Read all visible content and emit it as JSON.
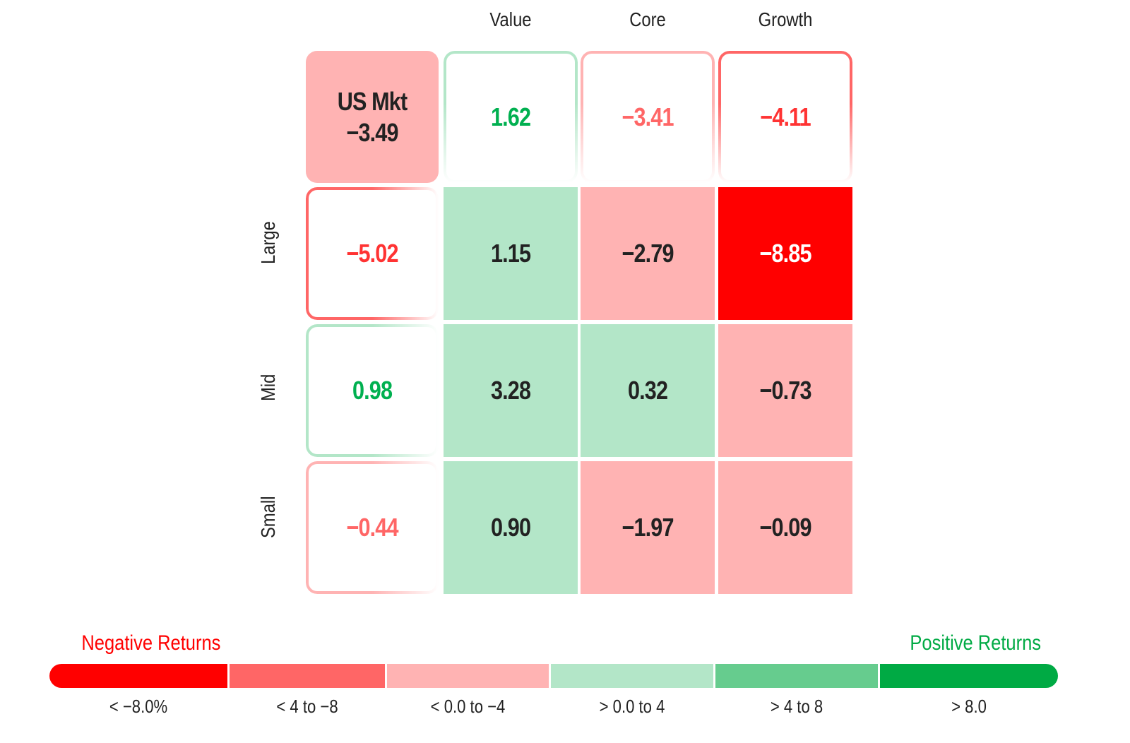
{
  "chart_data": {
    "type": "heatmap",
    "title": "",
    "columns": [
      "Value",
      "Core",
      "Growth"
    ],
    "rows": [
      "Large",
      "Mid",
      "Small"
    ],
    "market": {
      "label": "US Mkt",
      "value": -3.49
    },
    "column_totals": [
      1.62,
      -3.41,
      -4.11
    ],
    "row_totals": [
      -5.02,
      0.98,
      -0.44
    ],
    "values": [
      [
        1.15,
        -2.79,
        -8.85
      ],
      [
        3.28,
        0.32,
        -0.73
      ],
      [
        0.9,
        -1.97,
        -0.09
      ]
    ],
    "display": {
      "market": "−3.49",
      "column_totals": [
        "1.62",
        "−3.41",
        "−4.11"
      ],
      "row_totals": [
        "−5.02",
        "0.98",
        "−0.44"
      ],
      "values": [
        [
          "1.15",
          "−2.79",
          "−8.85"
        ],
        [
          "3.28",
          "0.32",
          "−0.73"
        ],
        [
          "0.90",
          "−1.97",
          "−0.09"
        ]
      ]
    },
    "legend": {
      "negative_label": "Negative Returns",
      "positive_label": "Positive Returns",
      "bins": [
        {
          "label": "< −8.0%",
          "color": "#FF0000"
        },
        {
          "label": "< 4 to −8",
          "color": "#FF6666"
        },
        {
          "label": "< 0.0 to −4",
          "color": "#FFB3B3"
        },
        {
          "label": "> 0.0 to 4",
          "color": "#B3E6C8"
        },
        {
          "label": "> 4 to 8",
          "color": "#66CC8E"
        },
        {
          "label": "> 8.0",
          "color": "#00AA44"
        }
      ]
    }
  },
  "colors": {
    "neg_text": "#FF3333",
    "neg_light_text": "#FF6666",
    "pos_text": "#00B050",
    "dark_text": "#222222"
  }
}
